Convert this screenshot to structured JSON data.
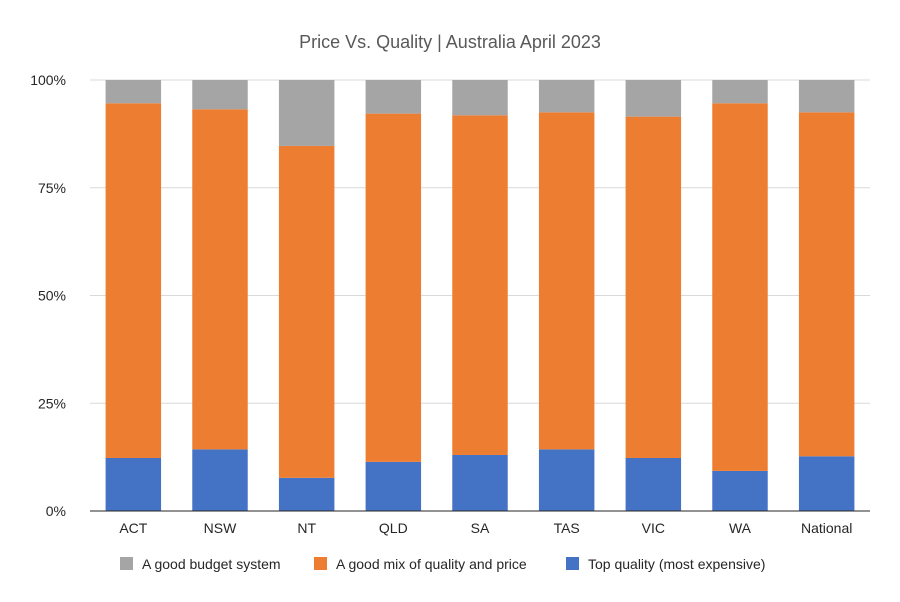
{
  "chart_data": {
    "type": "bar",
    "stacked": true,
    "percent_stacked": true,
    "title": "Price Vs. Quality | Australia April 2023",
    "xlabel": "",
    "ylabel": "",
    "categories": [
      "ACT",
      "NSW",
      "NT",
      "QLD",
      "SA",
      "TAS",
      "VIC",
      "WA",
      "National"
    ],
    "y_ticks": [
      "0%",
      "25%",
      "50%",
      "75%",
      "100%"
    ],
    "ylim": [
      0,
      100
    ],
    "grid": true,
    "legend_position": "bottom",
    "series": [
      {
        "name": "Top quality (most expensive)",
        "color": "#4472C4",
        "values": [
          12.3,
          14.3,
          7.7,
          11.4,
          13.0,
          14.3,
          12.3,
          9.3,
          12.7
        ]
      },
      {
        "name": "A good mix of quality and price",
        "color": "#ED7D31",
        "values": [
          82.3,
          78.9,
          77.0,
          80.8,
          78.8,
          78.2,
          79.2,
          85.3,
          79.8
        ]
      },
      {
        "name": "A good budget system",
        "color": "#A5A5A5",
        "values": [
          5.4,
          6.8,
          15.3,
          7.8,
          8.2,
          7.5,
          8.5,
          5.4,
          7.5
        ]
      }
    ],
    "legend_order": [
      "A good budget system",
      "A good mix of quality and price",
      "Top quality (most expensive)"
    ]
  }
}
